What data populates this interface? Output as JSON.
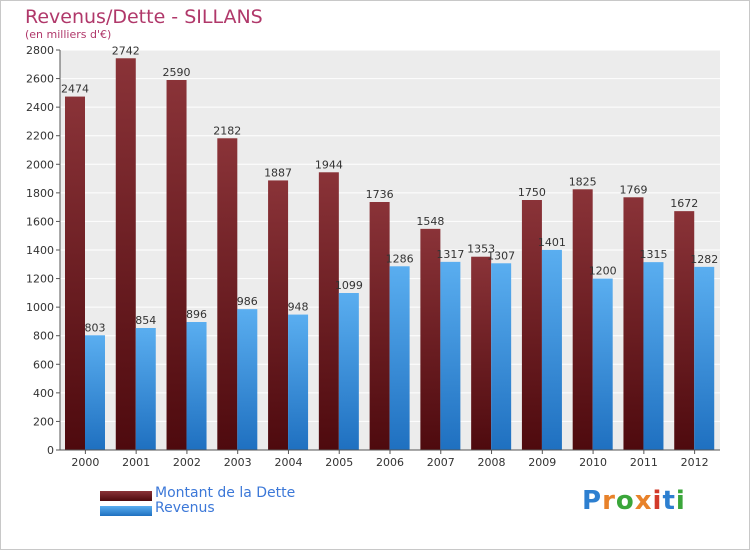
{
  "chart_data": {
    "type": "bar",
    "title": "Revenus/Dette - SILLANS",
    "subtitle": "(en milliers d'€)",
    "categories": [
      "2000",
      "2001",
      "2002",
      "2003",
      "2004",
      "2005",
      "2006",
      "2007",
      "2008",
      "2009",
      "2010",
      "2011",
      "2012"
    ],
    "series": [
      {
        "name": "Montant de la Dette",
        "color": "#6e1e22",
        "values": [
          2474,
          2742,
          2590,
          2182,
          1887,
          1944,
          1736,
          1548,
          1353,
          1750,
          1825,
          1769,
          1672
        ]
      },
      {
        "name": "Revenus",
        "color": "#3a8fdc",
        "values": [
          803,
          854,
          896,
          986,
          948,
          1099,
          1286,
          1317,
          1307,
          1401,
          1200,
          1315,
          1282
        ]
      }
    ],
    "yticks": [
      0,
      200,
      400,
      600,
      800,
      1000,
      1200,
      1400,
      1600,
      1800,
      2000,
      2200,
      2400,
      2600,
      2800
    ],
    "ylim": [
      0,
      2800
    ],
    "grid": true,
    "legend_position": "bottom-left"
  },
  "logo": {
    "text": "Proxiti",
    "letters": [
      "P",
      "r",
      "o",
      "x",
      "i",
      "t",
      "i"
    ],
    "colors": [
      "#2d7fd0",
      "#e8822a",
      "#3aa63a",
      "#e8822a",
      "#d23a2a",
      "#2d7fd0",
      "#3aa63a"
    ]
  }
}
